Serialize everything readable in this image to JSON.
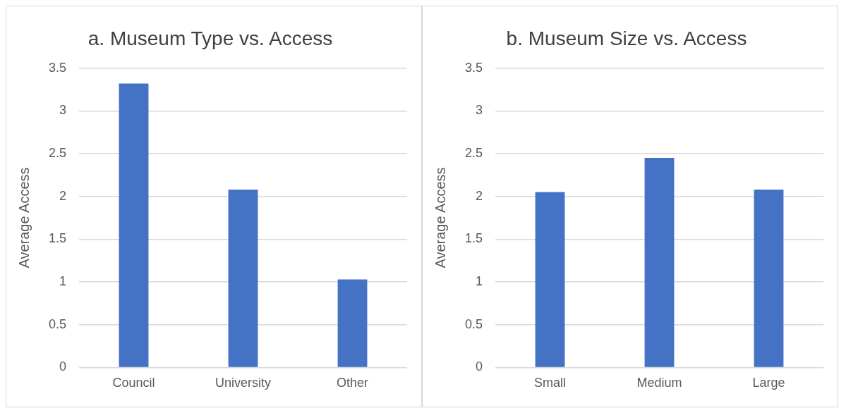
{
  "chart_data": [
    {
      "type": "bar",
      "title": "a. Museum Type vs. Access",
      "ylabel": "Average Access",
      "categories": [
        "Council",
        "University",
        "Other"
      ],
      "values": [
        3.32,
        2.08,
        1.03
      ],
      "color": "#4472c4",
      "ylim": [
        0,
        3.5
      ],
      "yticks": [
        0,
        0.5,
        1,
        1.5,
        2,
        2.5,
        3,
        3.5
      ],
      "grid": "y",
      "legend": false
    },
    {
      "type": "bar",
      "title": "b. Museum Size vs. Access",
      "ylabel": "Average Access",
      "categories": [
        "Small",
        "Medium",
        "Large"
      ],
      "values": [
        2.05,
        2.45,
        2.08
      ],
      "color": "#4472c4",
      "ylim": [
        0,
        3.5
      ],
      "yticks": [
        0,
        0.5,
        1,
        1.5,
        2,
        2.5,
        3,
        3.5
      ],
      "grid": "y",
      "legend": false
    }
  ]
}
